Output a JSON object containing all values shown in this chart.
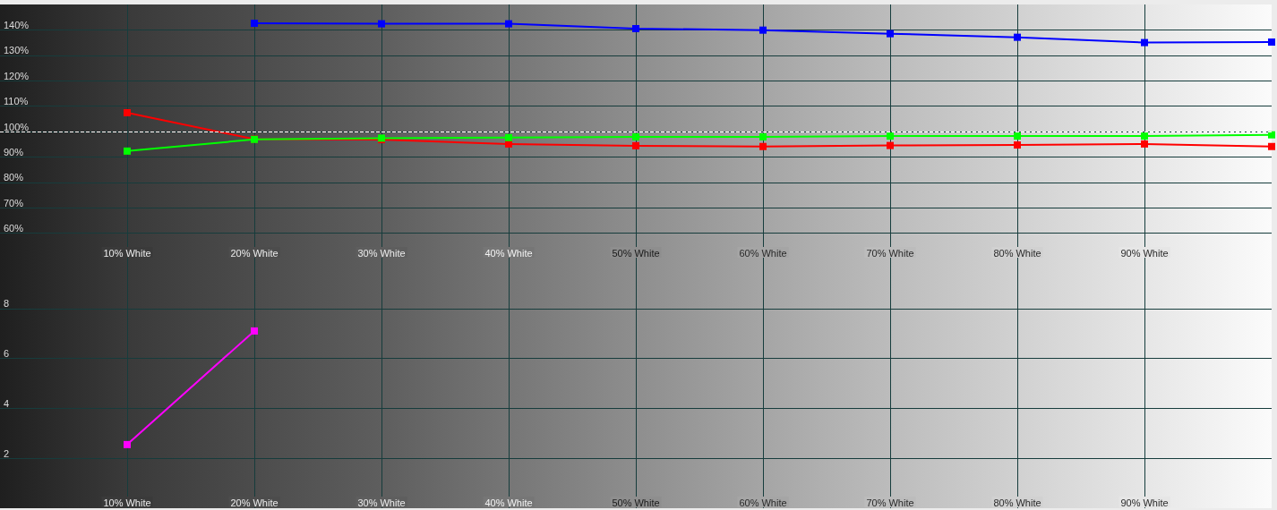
{
  "chart_data": [
    {
      "type": "line",
      "x": [
        10,
        20,
        30,
        40,
        50,
        60,
        70,
        80,
        90,
        100
      ],
      "xlim": [
        0,
        100
      ],
      "xticks": [
        {
          "value": 10,
          "label": "10% White"
        },
        {
          "value": 20,
          "label": "20% White"
        },
        {
          "value": 30,
          "label": "30% White"
        },
        {
          "value": 40,
          "label": "40% White"
        },
        {
          "value": 50,
          "label": "50% White"
        },
        {
          "value": 60,
          "label": "60% White"
        },
        {
          "value": 70,
          "label": "70% White"
        },
        {
          "value": 80,
          "label": "80% White"
        },
        {
          "value": 90,
          "label": "90% White"
        }
      ],
      "ylim": [
        50,
        150
      ],
      "yticks": [
        {
          "value": 60,
          "label": "60%"
        },
        {
          "value": 70,
          "label": "70%"
        },
        {
          "value": 80,
          "label": "80%"
        },
        {
          "value": 90,
          "label": "90%"
        },
        {
          "value": 100,
          "label": "100%"
        },
        {
          "value": 110,
          "label": "110%"
        },
        {
          "value": 120,
          "label": "120%"
        },
        {
          "value": 130,
          "label": "130%"
        },
        {
          "value": 140,
          "label": "140%"
        }
      ],
      "grid": true,
      "marker": "square",
      "ref_lines": [
        {
          "axis": "y",
          "value": 100,
          "color": "#ffffff",
          "line_style": "dashed"
        }
      ],
      "series": [
        {
          "color": "#ff0000",
          "values": [
            107.4,
            97.0,
            96.8,
            95.1,
            94.4,
            94.1,
            94.5,
            94.7,
            95.1,
            94.1
          ]
        },
        {
          "color": "#00ff00",
          "values": [
            92.3,
            96.9,
            97.4,
            97.6,
            97.9,
            97.9,
            98.2,
            98.2,
            98.2,
            98.7
          ]
        },
        {
          "color": "#0000ff",
          "values": [
            null,
            142.6,
            142.4,
            142.4,
            140.5,
            139.9,
            138.5,
            137.1,
            135.0,
            135.2
          ]
        }
      ]
    },
    {
      "type": "line",
      "x": [
        10,
        20
      ],
      "xlim": [
        0,
        100
      ],
      "xticks": [
        {
          "value": 10,
          "label": "10% White"
        },
        {
          "value": 20,
          "label": "20% White"
        },
        {
          "value": 30,
          "label": "30% White"
        },
        {
          "value": 40,
          "label": "40% White"
        },
        {
          "value": 50,
          "label": "50% White"
        },
        {
          "value": 60,
          "label": "60% White"
        },
        {
          "value": 70,
          "label": "70% White"
        },
        {
          "value": 80,
          "label": "80% White"
        },
        {
          "value": 90,
          "label": "90% White"
        }
      ],
      "ylim": [
        0,
        10
      ],
      "yticks": [
        2,
        4,
        6,
        8
      ],
      "grid": true,
      "marker": "square",
      "series": [
        {
          "color": "#ff00ff",
          "values": [
            2.55,
            7.1
          ]
        }
      ]
    }
  ]
}
